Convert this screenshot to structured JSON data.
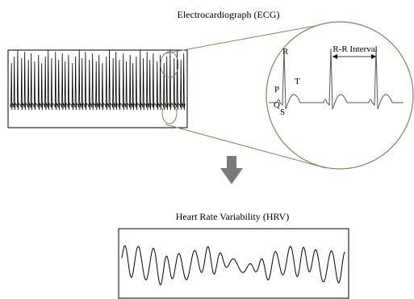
{
  "ecg": {
    "title": "Electrocardiograph (ECG)",
    "waves": {
      "p": "P",
      "q": "Q",
      "r": "R",
      "s": "S",
      "t": "T"
    },
    "interval_label": "R-R Interval"
  },
  "hrv": {
    "title": "Heart Rate Variability (HRV)"
  },
  "colors": {
    "trace": "#000000",
    "zoom_lines": "#8a7f66",
    "zoom_trace": "#555555",
    "arrow": "#7a7a7a",
    "frame": "#000000"
  }
}
